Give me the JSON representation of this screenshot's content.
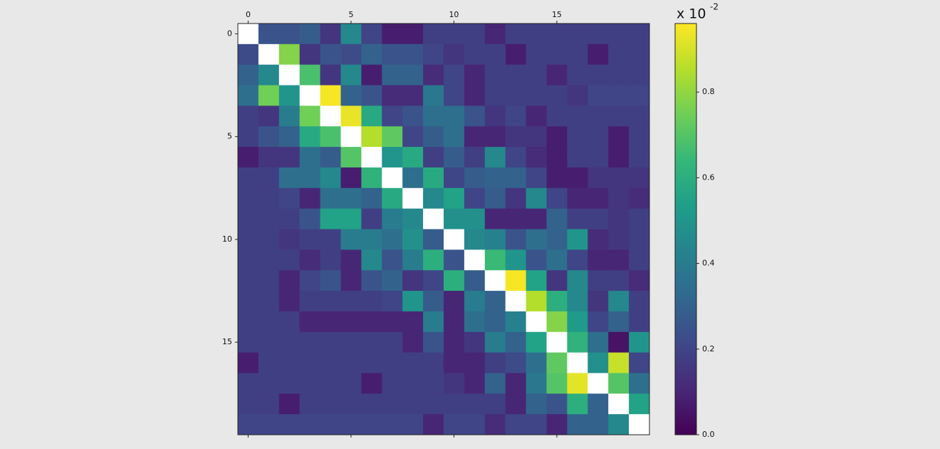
{
  "chart_data": {
    "type": "heatmap",
    "colormap": "viridis",
    "nan_color": "#ffffff",
    "clim": [
      0,
      0.96
    ],
    "xticks": [
      0,
      5,
      10,
      15
    ],
    "yticks": [
      0,
      5,
      10,
      15
    ],
    "colorbar_ticks": [
      {
        "value": 0,
        "label": "0.0"
      },
      0.2,
      0.4,
      0.6,
      0.8
    ],
    "colorbar_label": "x 10",
    "colorbar_exponent": "-2",
    "z": [
      [
        null,
        0.25,
        0.25,
        0.28,
        0.15,
        0.45,
        0.2,
        0.08,
        0.08,
        0.18,
        0.18,
        0.18,
        0.1,
        0.18,
        0.18,
        0.18,
        0.18,
        0.18,
        0.18,
        0.18
      ],
      [
        0.22,
        null,
        0.78,
        0.15,
        0.25,
        0.22,
        0.3,
        0.25,
        0.25,
        0.2,
        0.15,
        0.18,
        0.18,
        0.08,
        0.18,
        0.18,
        0.18,
        0.08,
        0.18,
        0.18
      ],
      [
        0.3,
        0.45,
        null,
        0.68,
        0.15,
        0.45,
        0.08,
        0.3,
        0.3,
        0.12,
        0.2,
        0.1,
        0.18,
        0.18,
        0.18,
        0.1,
        0.18,
        0.18,
        0.18,
        0.18
      ],
      [
        0.35,
        0.75,
        0.5,
        null,
        0.95,
        0.3,
        0.25,
        0.12,
        0.12,
        0.38,
        0.2,
        0.1,
        0.18,
        0.18,
        0.18,
        0.18,
        0.15,
        0.2,
        0.2,
        0.2
      ],
      [
        0.18,
        0.15,
        0.4,
        0.75,
        null,
        0.93,
        0.58,
        0.2,
        0.25,
        0.35,
        0.35,
        0.25,
        0.15,
        0.2,
        0.1,
        0.18,
        0.18,
        0.18,
        0.18,
        0.18
      ],
      [
        0.18,
        0.25,
        0.3,
        0.58,
        0.68,
        null,
        0.85,
        0.72,
        0.2,
        0.28,
        0.35,
        0.1,
        0.1,
        0.15,
        0.15,
        0.08,
        0.18,
        0.18,
        0.08,
        0.18
      ],
      [
        0.08,
        0.15,
        0.15,
        0.35,
        0.28,
        0.7,
        null,
        0.5,
        0.58,
        0.18,
        0.28,
        0.18,
        0.45,
        0.2,
        0.12,
        0.08,
        0.18,
        0.18,
        0.08,
        0.18
      ],
      [
        0.18,
        0.18,
        0.35,
        0.35,
        0.45,
        0.08,
        0.62,
        null,
        0.35,
        0.58,
        0.2,
        0.28,
        0.3,
        0.3,
        0.2,
        0.08,
        0.08,
        0.15,
        0.15,
        0.15
      ],
      [
        0.18,
        0.18,
        0.2,
        0.1,
        0.35,
        0.35,
        0.3,
        0.58,
        null,
        0.45,
        0.55,
        0.2,
        0.28,
        0.15,
        0.45,
        0.2,
        0.1,
        0.1,
        0.15,
        0.12
      ],
      [
        0.18,
        0.18,
        0.18,
        0.25,
        0.55,
        0.55,
        0.18,
        0.4,
        0.45,
        null,
        0.48,
        0.48,
        0.1,
        0.1,
        0.1,
        0.3,
        0.18,
        0.18,
        0.15,
        0.18
      ],
      [
        0.18,
        0.18,
        0.15,
        0.18,
        0.18,
        0.4,
        0.4,
        0.35,
        0.48,
        0.28,
        null,
        0.45,
        0.42,
        0.25,
        0.35,
        0.3,
        0.5,
        0.12,
        0.15,
        0.18
      ],
      [
        0.18,
        0.18,
        0.18,
        0.12,
        0.18,
        0.1,
        0.45,
        0.25,
        0.4,
        0.6,
        0.25,
        null,
        0.65,
        0.5,
        0.25,
        0.35,
        0.2,
        0.1,
        0.1,
        0.18
      ],
      [
        0.18,
        0.18,
        0.1,
        0.2,
        0.25,
        0.1,
        0.25,
        0.3,
        0.15,
        0.2,
        0.6,
        0.28,
        null,
        0.95,
        0.55,
        0.15,
        0.45,
        0.18,
        0.18,
        0.12
      ],
      [
        0.18,
        0.18,
        0.1,
        0.18,
        0.18,
        0.18,
        0.18,
        0.2,
        0.5,
        0.28,
        0.1,
        0.4,
        0.3,
        null,
        0.85,
        0.6,
        0.45,
        0.15,
        0.45,
        0.18
      ],
      [
        0.18,
        0.18,
        0.18,
        0.1,
        0.1,
        0.1,
        0.1,
        0.1,
        0.1,
        0.4,
        0.1,
        0.35,
        0.3,
        0.42,
        null,
        0.78,
        0.52,
        0.2,
        0.3,
        0.18
      ],
      [
        0.18,
        0.18,
        0.18,
        0.18,
        0.18,
        0.18,
        0.18,
        0.18,
        0.1,
        0.25,
        0.1,
        0.15,
        0.4,
        0.3,
        0.55,
        null,
        0.62,
        0.35,
        0.05,
        0.5
      ],
      [
        0.08,
        0.18,
        0.18,
        0.18,
        0.18,
        0.18,
        0.18,
        0.18,
        0.18,
        0.18,
        0.1,
        0.1,
        0.18,
        0.22,
        0.35,
        0.72,
        null,
        0.48,
        0.88,
        0.2
      ],
      [
        0.18,
        0.18,
        0.18,
        0.18,
        0.18,
        0.18,
        0.08,
        0.18,
        0.18,
        0.18,
        0.15,
        0.1,
        0.3,
        0.1,
        0.38,
        0.7,
        0.92,
        null,
        0.7,
        0.35
      ],
      [
        0.18,
        0.18,
        0.08,
        0.18,
        0.18,
        0.18,
        0.18,
        0.18,
        0.18,
        0.18,
        0.18,
        0.18,
        0.18,
        0.1,
        0.3,
        0.25,
        0.6,
        0.3,
        null,
        0.55
      ],
      [
        0.2,
        0.2,
        0.2,
        0.2,
        0.2,
        0.2,
        0.2,
        0.2,
        0.2,
        0.1,
        0.2,
        0.2,
        0.12,
        0.2,
        0.2,
        0.1,
        0.3,
        0.3,
        0.45,
        null
      ]
    ]
  }
}
